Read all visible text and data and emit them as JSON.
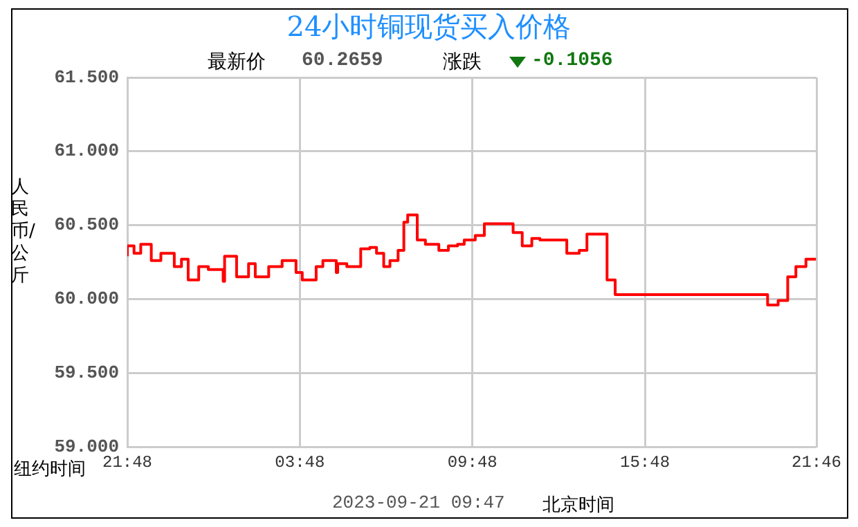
{
  "chart_data": {
    "type": "step",
    "title": "24小时铜现货买入价格",
    "xlabel": "纽约时间",
    "ylabel": "人民币/公斤",
    "annotations": [
      "最新价",
      "60.2659",
      "涨跌",
      "-0.1056",
      "2023-09-21 09:47",
      "北京时间"
    ],
    "x": [
      "2023-09-20T21:48",
      "2023-09-20T22:02",
      "2023-09-20T22:16",
      "2023-09-20T22:38",
      "2023-09-20T22:58",
      "2023-09-20T23:26",
      "2023-09-20T23:41",
      "2023-09-20T23:55",
      "2023-09-21T00:17",
      "2023-09-21T00:37",
      "2023-09-21T01:08",
      "2023-09-21T01:11",
      "2023-09-21T01:36",
      "2023-09-21T02:01",
      "2023-09-21T02:15",
      "2023-09-21T02:43",
      "2023-09-21T03:11",
      "2023-09-21T03:40",
      "2023-09-21T03:53",
      "2023-09-21T04:22",
      "2023-09-21T04:36",
      "2023-09-21T05:04",
      "2023-09-21T05:07",
      "2023-09-21T05:26",
      "2023-09-21T05:55",
      "2023-09-21T06:14",
      "2023-09-21T06:28",
      "2023-09-21T06:43",
      "2023-09-21T06:56",
      "2023-09-21T07:13",
      "2023-09-21T07:25",
      "2023-09-21T07:33",
      "2023-09-21T07:53",
      "2023-09-21T08:10",
      "2023-09-21T08:38",
      "2023-09-21T08:58",
      "2023-09-21T09:17",
      "2023-09-21T09:31",
      "2023-09-21T09:54",
      "2023-09-21T10:13",
      "2023-09-21T10:50",
      "2023-09-21T11:13",
      "2023-09-21T11:32",
      "2023-09-21T11:52",
      "2023-09-21T12:09",
      "2023-09-21T13:05",
      "2023-09-21T13:31",
      "2023-09-21T13:47",
      "2023-09-21T14:29",
      "2023-09-21T14:46",
      "2023-09-21T20:04",
      "2023-09-21T20:26",
      "2023-09-21T20:46",
      "2023-09-21T21:03",
      "2023-09-21T21:24",
      "2023-09-21T21:45"
    ],
    "values": [
      60.29,
      60.36,
      60.31,
      60.37,
      60.26,
      60.31,
      60.22,
      60.27,
      60.13,
      60.22,
      60.2,
      60.12,
      60.29,
      60.15,
      60.24,
      60.15,
      60.22,
      60.26,
      60.18,
      60.13,
      60.22,
      60.26,
      60.18,
      60.24,
      60.22,
      60.34,
      60.35,
      60.31,
      60.22,
      60.26,
      60.33,
      60.52,
      60.57,
      60.4,
      60.37,
      60.33,
      60.36,
      60.37,
      60.4,
      60.43,
      60.51,
      60.51,
      60.45,
      60.36,
      60.41,
      60.4,
      60.31,
      60.33,
      60.44,
      60.13,
      60.03,
      59.96,
      59.99,
      60.15,
      60.22,
      60.27
    ],
    "color": "#ff0000",
    "xlim": [
      "2023-09-20T21:48",
      "2023-09-21T21:46"
    ],
    "xticks": [
      {
        "value": "2023-09-20T21:48",
        "label": "21:48"
      },
      {
        "value": "2023-09-21T03:48",
        "label": "03:48"
      },
      {
        "value": "2023-09-21T09:48",
        "label": "09:48"
      },
      {
        "value": "2023-09-21T15:48",
        "label": "15:48"
      },
      {
        "value": "2023-09-21T21:46",
        "label": "21:46"
      }
    ],
    "ylim": [
      59,
      61.5
    ],
    "yticks": [
      {
        "value": 59,
        "label": "59.000"
      },
      {
        "value": 59.5,
        "label": "59.500"
      },
      {
        "value": 60,
        "label": "60.000"
      },
      {
        "value": 60.5,
        "label": "60.500"
      },
      {
        "value": 61,
        "label": "61.000"
      },
      {
        "value": 61.5,
        "label": "61.500"
      }
    ],
    "grid": true
  }
}
